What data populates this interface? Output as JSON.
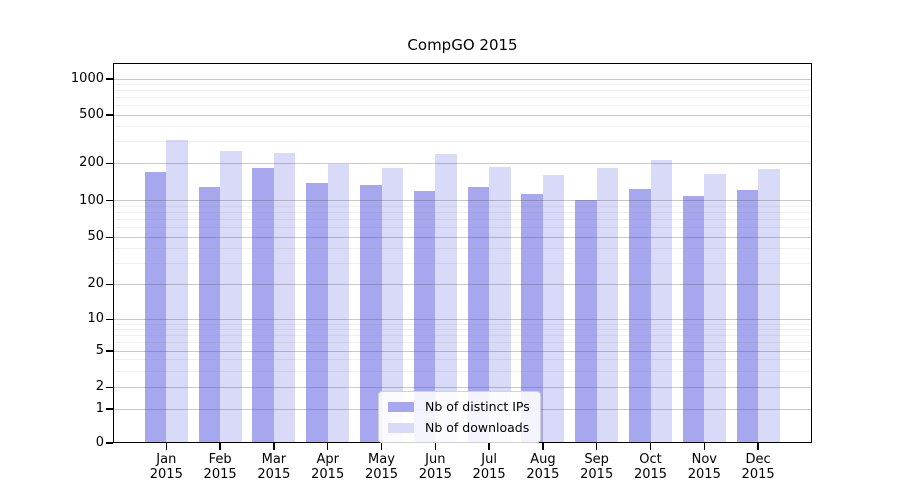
{
  "title": "CompGO 2015",
  "chart_data": {
    "type": "bar",
    "title": "CompGO 2015",
    "categories": [
      "Jan",
      "Feb",
      "Mar",
      "Apr",
      "May",
      "Jun",
      "Jul",
      "Aug",
      "Sep",
      "Oct",
      "Nov",
      "Dec"
    ],
    "x_year_label": "2015",
    "series": [
      {
        "name": "Nb of distinct IPs",
        "color": "#a7a7f0",
        "values": [
          170,
          130,
          185,
          140,
          135,
          120,
          130,
          113,
          102,
          124,
          109,
          122
        ]
      },
      {
        "name": "Nb of downloads",
        "color": "#d9d9f8",
        "values": [
          310,
          252,
          245,
          197,
          185,
          237,
          187,
          160,
          182,
          212,
          163,
          179
        ]
      }
    ],
    "yscale": "log-like",
    "yticks": [
      0,
      1,
      2,
      5,
      10,
      20,
      50,
      100,
      200,
      500,
      1000
    ],
    "ylim": [
      0,
      1000
    ],
    "grid": true,
    "legend_position": "lower center inside plot"
  }
}
